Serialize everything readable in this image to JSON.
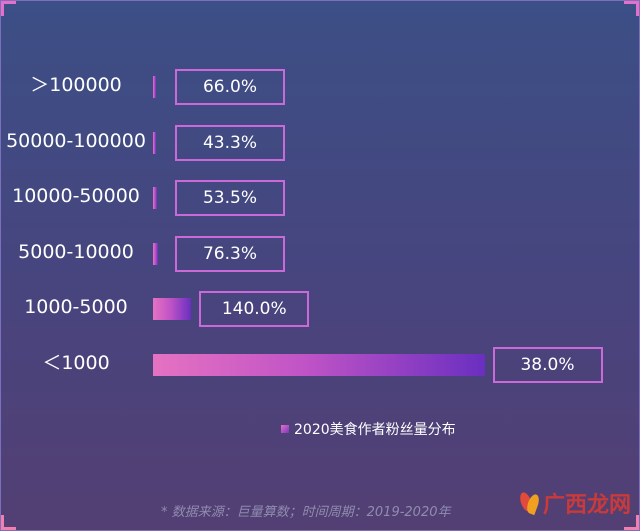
{
  "chart_data": {
    "type": "bar",
    "orientation": "horizontal",
    "categories": [
      ">100000",
      "50000-100000",
      "10000-50000",
      "5000-10000",
      "1000-5000",
      "<1000"
    ],
    "display_categories": [
      "＞100000",
      "50000-100000",
      "10000-50000",
      "5000-10000",
      "1000-5000",
      "＜1000"
    ],
    "value_labels": [
      "66.0%",
      "43.3%",
      "53.5%",
      "76.3%",
      "140.0%",
      "38.0%"
    ],
    "series": [
      {
        "name": "2020美食作者粉丝量分布",
        "values": [
          0.3,
          0.3,
          0.5,
          0.6,
          4.5,
          39.0
        ]
      }
    ],
    "xlim": [
      0,
      40
    ],
    "legend_position": "bottom-center",
    "grid": false
  },
  "source_note": "* 数据来源：巨量算数；时间周期：2019-2020年",
  "watermark_text": "广西龙网",
  "colors": {
    "bar_start": "#e572c2",
    "bar_end": "#6a2fc0",
    "box_border": "#c96ad8"
  }
}
